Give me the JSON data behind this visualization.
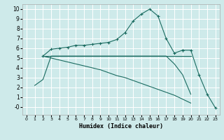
{
  "xlabel": "Humidex (Indice chaleur)",
  "xlim": [
    -0.5,
    23.5
  ],
  "ylim": [
    -0.8,
    10.5
  ],
  "xticks": [
    0,
    1,
    2,
    3,
    4,
    5,
    6,
    7,
    8,
    9,
    10,
    11,
    12,
    13,
    14,
    15,
    16,
    17,
    18,
    19,
    20,
    21,
    22,
    23
  ],
  "yticks": [
    0,
    1,
    2,
    3,
    4,
    5,
    6,
    7,
    8,
    9,
    10
  ],
  "bg_color": "#ceeaea",
  "line_color": "#1a6b60",
  "grid_color": "#ffffff",
  "lines": [
    {
      "x": [
        2,
        3,
        4,
        5,
        6,
        7,
        8,
        9,
        10,
        11,
        12,
        13,
        14,
        15,
        16,
        17,
        18,
        19
      ],
      "y": [
        5.2,
        5.9,
        6.0,
        6.1,
        6.3,
        6.3,
        6.4,
        6.5,
        6.6,
        6.9,
        7.6,
        8.8,
        9.5,
        10.0,
        9.3,
        7.0,
        5.5,
        5.8
      ],
      "marker": true
    },
    {
      "x": [
        2,
        3,
        4,
        5,
        6,
        7,
        8,
        9,
        10,
        11,
        12,
        13,
        14,
        15,
        16,
        17,
        18,
        19,
        20
      ],
      "y": [
        5.2,
        5.2,
        5.2,
        5.2,
        5.2,
        5.2,
        5.2,
        5.2,
        5.2,
        5.2,
        5.2,
        5.2,
        5.2,
        5.2,
        5.2,
        5.2,
        5.2,
        5.2,
        5.2
      ],
      "marker": false
    },
    {
      "x": [
        2,
        3,
        4,
        5,
        6,
        7,
        8,
        9,
        10,
        11,
        12,
        13,
        14,
        15,
        16,
        17,
        18,
        19,
        20
      ],
      "y": [
        5.2,
        5.0,
        4.8,
        4.6,
        4.4,
        4.2,
        4.0,
        3.8,
        3.5,
        3.2,
        3.0,
        2.7,
        2.4,
        2.1,
        1.8,
        1.5,
        1.2,
        0.8,
        0.4
      ],
      "marker": false
    },
    {
      "x": [
        1,
        2,
        3,
        4,
        5,
        6,
        7,
        8,
        9,
        10,
        11,
        12,
        13,
        14,
        15,
        16,
        17,
        18,
        19,
        20,
        21,
        22,
        23
      ],
      "y": [
        2.2,
        2.8,
        5.2,
        5.2,
        5.2,
        5.2,
        5.2,
        5.2,
        5.2,
        5.2,
        5.2,
        5.2,
        5.2,
        5.2,
        5.2,
        5.2,
        5.2,
        4.4,
        3.3,
        1.3,
        null,
        null,
        null
      ],
      "marker": false
    },
    {
      "x": [
        19,
        20,
        21,
        22,
        23
      ],
      "y": [
        5.8,
        5.8,
        3.3,
        1.3,
        -0.1
      ],
      "marker": true
    }
  ]
}
